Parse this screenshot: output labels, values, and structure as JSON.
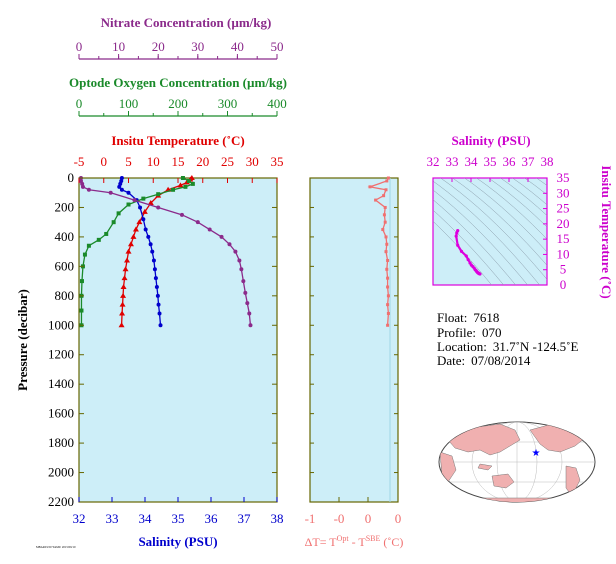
{
  "chart_data": [
    {
      "type": "line",
      "panel": "profile",
      "y_axis": {
        "label": "Pressure (decibar)",
        "ylim": [
          0,
          2200
        ],
        "ticks": [
          "0",
          "200",
          "400",
          "600",
          "800",
          "1000",
          "1200",
          "1400",
          "1600",
          "1800",
          "2000",
          "2200"
        ]
      },
      "axes": {
        "nitrate": {
          "label": "Nitrate Concentration (µm/kg)",
          "xlim": [
            0,
            50
          ],
          "ticks": [
            "0",
            "10",
            "20",
            "30",
            "40",
            "50"
          ],
          "color": "#8b2a8b"
        },
        "oxygen": {
          "label": "Optode Oxygen Concentration (µm/kg)",
          "xlim": [
            0,
            400
          ],
          "ticks": [
            "0",
            "100",
            "200",
            "300",
            "400"
          ],
          "color": "#1a8a2a"
        },
        "temperature": {
          "label": "Insitu Temperature (˚C)",
          "xlim": [
            -5,
            35
          ],
          "ticks": [
            "-5",
            "0",
            "5",
            "10",
            "15",
            "20",
            "25",
            "30",
            "35"
          ],
          "color": "#e00000"
        },
        "salinity": {
          "label": "Salinity (PSU)",
          "xlim": [
            32,
            38
          ],
          "ticks": [
            "32",
            "33",
            "34",
            "35",
            "36",
            "37",
            "38"
          ],
          "color": "#0000cc"
        }
      },
      "series": [
        {
          "key": "temperature",
          "color": "#e00000",
          "marker": "triangle",
          "points": [
            [
              17.8,
              0
            ],
            [
              17.5,
              10
            ],
            [
              16.8,
              30
            ],
            [
              15.5,
              50
            ],
            [
              13.0,
              80
            ],
            [
              11.0,
              120
            ],
            [
              9.5,
              170
            ],
            [
              8.3,
              230
            ],
            [
              7.2,
              300
            ],
            [
              6.5,
              350
            ],
            [
              6.0,
              400
            ],
            [
              5.5,
              450
            ],
            [
              5.0,
              500
            ],
            [
              4.7,
              560
            ],
            [
              4.4,
              620
            ],
            [
              4.2,
              680
            ],
            [
              4.0,
              740
            ],
            [
              3.9,
              800
            ],
            [
              3.8,
              860
            ],
            [
              3.7,
              920
            ],
            [
              3.6,
              1000
            ]
          ]
        },
        {
          "key": "salinity",
          "color": "#0000cc",
          "marker": "circle",
          "points": [
            [
              33.3,
              0
            ],
            [
              33.28,
              20
            ],
            [
              33.25,
              40
            ],
            [
              33.22,
              60
            ],
            [
              33.3,
              80
            ],
            [
              33.5,
              100
            ],
            [
              33.75,
              150
            ],
            [
              33.85,
              200
            ],
            [
              33.95,
              280
            ],
            [
              34.02,
              350
            ],
            [
              34.1,
              400
            ],
            [
              34.17,
              450
            ],
            [
              34.22,
              500
            ],
            [
              34.27,
              560
            ],
            [
              34.3,
              620
            ],
            [
              34.33,
              680
            ],
            [
              34.36,
              740
            ],
            [
              34.39,
              800
            ],
            [
              34.41,
              860
            ],
            [
              34.44,
              920
            ],
            [
              34.47,
              1000
            ]
          ]
        },
        {
          "key": "oxygen",
          "color": "#1a8a2a",
          "marker": "square",
          "points": [
            [
              210,
              0
            ],
            [
              222,
              20
            ],
            [
              230,
              40
            ],
            [
              215,
              60
            ],
            [
              190,
              80
            ],
            [
              160,
              110
            ],
            [
              130,
              140
            ],
            [
              100,
              180
            ],
            [
              80,
              240
            ],
            [
              70,
              300
            ],
            [
              55,
              380
            ],
            [
              40,
              420
            ],
            [
              20,
              460
            ],
            [
              12,
              520
            ],
            [
              8,
              600
            ],
            [
              6,
              700
            ],
            [
              5,
              800
            ],
            [
              5,
              900
            ],
            [
              5,
              1000
            ]
          ]
        },
        {
          "key": "nitrate",
          "color": "#8b2a8b",
          "marker": "circle",
          "points": [
            [
              0.5,
              0
            ],
            [
              0.5,
              20
            ],
            [
              0.8,
              40
            ],
            [
              1.0,
              60
            ],
            [
              2.5,
              80
            ],
            [
              8,
              100
            ],
            [
              14,
              150
            ],
            [
              20,
              200
            ],
            [
              26,
              250
            ],
            [
              30,
              300
            ],
            [
              33,
              350
            ],
            [
              36,
              400
            ],
            [
              38,
              450
            ],
            [
              39.5,
              500
            ],
            [
              40.5,
              560
            ],
            [
              41,
              620
            ],
            [
              41.5,
              700
            ],
            [
              42,
              780
            ],
            [
              42.5,
              850
            ],
            [
              43,
              920
            ],
            [
              43.3,
              1000
            ]
          ]
        }
      ]
    },
    {
      "type": "line",
      "panel": "delta-t",
      "xlabel_main": "ΔT= T",
      "xlabel_sup1": "Opt",
      "xlabel_mid": " - T",
      "xlabel_sup2": "SBE",
      "xlabel_end": " (˚C)",
      "xlim": [
        -1,
        0.1
      ],
      "ticks": [
        "-1",
        "-0",
        "-0",
        "0",
        "0"
      ],
      "color": "#f07070",
      "points": [
        [
          -0.02,
          0
        ],
        [
          -0.04,
          20
        ],
        [
          -0.25,
          60
        ],
        [
          -0.05,
          80
        ],
        [
          -0.08,
          120
        ],
        [
          -0.18,
          150
        ],
        [
          -0.06,
          200
        ],
        [
          -0.07,
          250
        ],
        [
          -0.06,
          300
        ],
        [
          -0.09,
          350
        ],
        [
          -0.05,
          400
        ],
        [
          -0.04,
          450
        ],
        [
          -0.05,
          500
        ],
        [
          -0.03,
          560
        ],
        [
          -0.04,
          620
        ],
        [
          -0.03,
          680
        ],
        [
          -0.03,
          740
        ],
        [
          -0.02,
          800
        ],
        [
          -0.03,
          860
        ],
        [
          -0.02,
          920
        ],
        [
          -0.03,
          1000
        ]
      ]
    },
    {
      "type": "scatter",
      "panel": "ts-diagram",
      "title": "Salinity (PSU)",
      "ylabel": "Insitu Temperature (˚C)",
      "xlim": [
        32,
        38
      ],
      "ylim": [
        0,
        35
      ],
      "xticks": [
        "32",
        "33",
        "34",
        "35",
        "36",
        "37",
        "38"
      ],
      "yticks": [
        "0",
        "5",
        "10",
        "15",
        "20",
        "25",
        "30",
        "35"
      ],
      "color": "#dd00dd",
      "points": [
        [
          33.3,
          17.8
        ],
        [
          33.25,
          17.0
        ],
        [
          33.22,
          16.0
        ],
        [
          33.3,
          13.0
        ],
        [
          33.5,
          11.0
        ],
        [
          33.75,
          9.5
        ],
        [
          33.85,
          8.3
        ],
        [
          33.95,
          7.2
        ],
        [
          34.02,
          6.5
        ],
        [
          34.1,
          6.0
        ],
        [
          34.17,
          5.5
        ],
        [
          34.22,
          5.0
        ],
        [
          34.27,
          4.7
        ],
        [
          34.3,
          4.4
        ],
        [
          34.33,
          4.2
        ],
        [
          34.36,
          4.0
        ],
        [
          34.39,
          3.9
        ],
        [
          34.41,
          3.8
        ],
        [
          34.44,
          3.7
        ],
        [
          34.47,
          3.6
        ]
      ]
    }
  ],
  "info": {
    "float_label": "Float:",
    "float_value": "7618",
    "profile_label": "Profile:",
    "profile_value": "070",
    "location_label": "Location:",
    "location_value": "31.7˚N  -124.5˚E",
    "date_label": "Date:",
    "date_value": "07/08/2014"
  },
  "map": {
    "land_color": "#f0b0b0",
    "ocean_color": "#ffffff",
    "marker_color": "#0000ff"
  },
  "footer_stamp": "MBARI/UW/TAMU 2015/09/10",
  "colors": {
    "panel_bg": "#cdeef8",
    "frame": "#666600"
  }
}
